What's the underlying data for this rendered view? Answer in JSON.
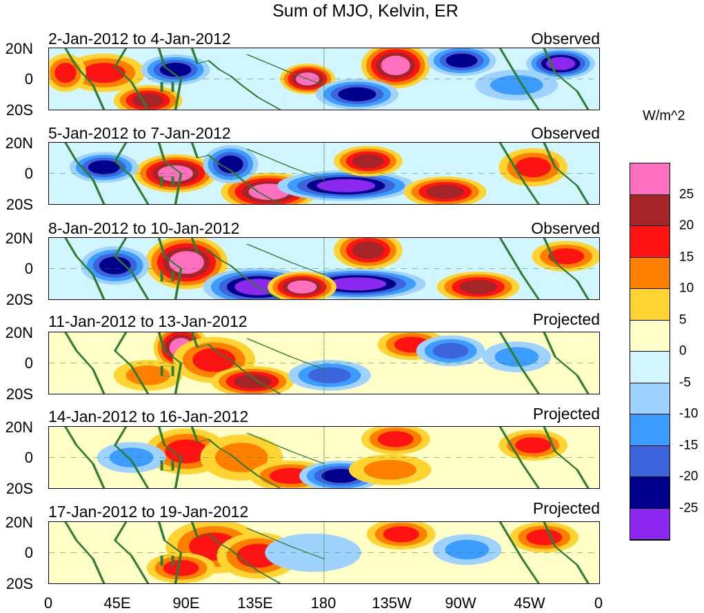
{
  "title": "Sum of MJO, Kelvin, ER",
  "panels": [
    {
      "range": "2-Jan-2012 to 4-Jan-2012",
      "type": "Observed"
    },
    {
      "range": "5-Jan-2012 to 7-Jan-2012",
      "type": "Observed"
    },
    {
      "range": "8-Jan-2012 to 10-Jan-2012",
      "type": "Observed"
    },
    {
      "range": "11-Jan-2012 to 13-Jan-2012",
      "type": "Projected"
    },
    {
      "range": "14-Jan-2012 to 16-Jan-2012",
      "type": "Projected"
    },
    {
      "range": "17-Jan-2012 to 19-Jan-2012",
      "type": "Projected"
    }
  ],
  "lat_labels": [
    "20N",
    "0",
    "20S"
  ],
  "lon_labels": [
    "0",
    "45E",
    "90E",
    "135E",
    "180",
    "135W",
    "90W",
    "45W",
    "0"
  ],
  "colorbar": {
    "units": "W/m^2",
    "levels": [
      "25",
      "20",
      "15",
      "10",
      "5",
      "0",
      "-5",
      "-10",
      "-15",
      "-20",
      "-25"
    ],
    "colors": [
      "#ff6fbf",
      "#a52428",
      "#ff1212",
      "#ff7f00",
      "#ffd432",
      "#ffffc8",
      "#d2f6ff",
      "#a0d2ff",
      "#3c9cff",
      "#3c64dc",
      "#00008c",
      "#8c28f0"
    ]
  }
}
